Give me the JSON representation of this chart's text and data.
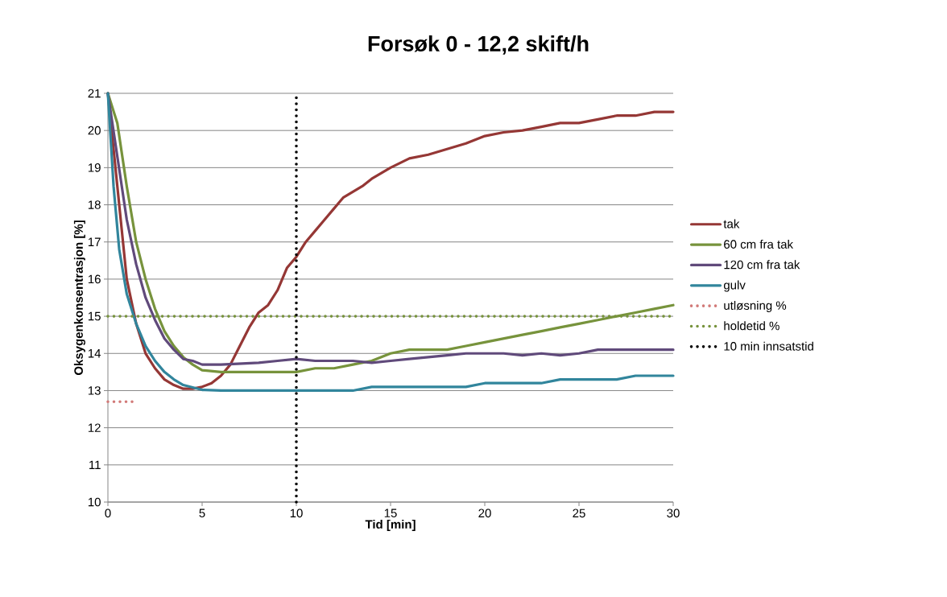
{
  "chart_data": {
    "type": "line",
    "title": "Forsøk  0 - 12,2 skift/h",
    "xlabel": "Tid [min]",
    "ylabel": "Oksygenkonsentrasjon [%]",
    "xlim": [
      0,
      30
    ],
    "ylim": [
      10,
      21
    ],
    "xticks": [
      0,
      5,
      10,
      15,
      20,
      25,
      30
    ],
    "yticks": [
      10,
      11,
      12,
      13,
      14,
      15,
      16,
      17,
      18,
      19,
      20,
      21
    ],
    "grid": "y",
    "legend": "right",
    "series": [
      {
        "name": "tak",
        "color": "#953735",
        "line_style": "solid",
        "x": [
          0,
          0.5,
          1,
          1.5,
          2,
          2.5,
          3,
          3.5,
          4,
          4.5,
          5,
          5.5,
          6,
          6.5,
          7,
          7.5,
          8,
          8.5,
          9,
          9.5,
          10,
          10.5,
          11,
          11.5,
          12,
          12.5,
          13,
          13.5,
          14,
          14.5,
          15,
          16,
          17,
          18,
          19,
          20,
          21,
          22,
          23,
          24,
          25,
          26,
          27,
          28,
          29,
          30
        ],
        "values": [
          21,
          18.5,
          16,
          14.8,
          14,
          13.6,
          13.3,
          13.15,
          13.05,
          13.05,
          13.1,
          13.2,
          13.4,
          13.7,
          14.2,
          14.7,
          15.1,
          15.3,
          15.7,
          16.3,
          16.6,
          17.0,
          17.3,
          17.6,
          17.9,
          18.2,
          18.35,
          18.5,
          18.7,
          18.85,
          19.0,
          19.25,
          19.35,
          19.5,
          19.65,
          19.85,
          19.95,
          20.0,
          20.1,
          20.2,
          20.2,
          20.3,
          20.4,
          20.4,
          20.5,
          20.5
        ]
      },
      {
        "name": "60 cm fra tak",
        "color": "#77933c",
        "line_style": "solid",
        "x": [
          0,
          0.5,
          1,
          1.5,
          2,
          2.5,
          3,
          3.5,
          4,
          4.5,
          5,
          6,
          8,
          10,
          11,
          12,
          13,
          14,
          15,
          16,
          18,
          19,
          20,
          21,
          22,
          23,
          24,
          25,
          26,
          27,
          28,
          29,
          30
        ],
        "values": [
          21,
          20.2,
          18.5,
          17.0,
          16.0,
          15.2,
          14.6,
          14.2,
          13.9,
          13.7,
          13.55,
          13.5,
          13.5,
          13.5,
          13.6,
          13.6,
          13.7,
          13.8,
          14.0,
          14.1,
          14.1,
          14.2,
          14.3,
          14.4,
          14.5,
          14.6,
          14.7,
          14.8,
          14.9,
          15.0,
          15.1,
          15.2,
          15.3
        ]
      },
      {
        "name": "120 cm fra tak",
        "color": "#604a7b",
        "line_style": "solid",
        "x": [
          0,
          0.5,
          1,
          1.5,
          2,
          2.5,
          3,
          3.5,
          4,
          4.5,
          5,
          6,
          8,
          9,
          10,
          11,
          13,
          14,
          15,
          16,
          17,
          18,
          19,
          21,
          22,
          23,
          24,
          25,
          26,
          30
        ],
        "values": [
          21,
          19.3,
          17.6,
          16.4,
          15.5,
          14.9,
          14.4,
          14.1,
          13.85,
          13.8,
          13.7,
          13.7,
          13.75,
          13.8,
          13.85,
          13.8,
          13.8,
          13.75,
          13.8,
          13.85,
          13.9,
          13.95,
          14.0,
          14.0,
          13.95,
          14.0,
          13.95,
          14.0,
          14.1,
          14.1
        ]
      },
      {
        "name": "gulv",
        "color": "#31859c",
        "line_style": "solid",
        "x": [
          0,
          0.3,
          0.6,
          1,
          1.5,
          2,
          2.5,
          3,
          3.5,
          4,
          5,
          6,
          13,
          14,
          19,
          20,
          23,
          24,
          27,
          28,
          30
        ],
        "values": [
          21,
          18.5,
          16.8,
          15.6,
          14.8,
          14.2,
          13.8,
          13.5,
          13.3,
          13.15,
          13.02,
          13.0,
          13.0,
          13.1,
          13.1,
          13.2,
          13.2,
          13.3,
          13.3,
          13.4,
          13.4
        ]
      },
      {
        "name": "utløsning %",
        "color": "#d27a78",
        "line_style": "dotted",
        "x": [
          0,
          1.4
        ],
        "values": [
          12.7,
          12.7
        ]
      },
      {
        "name": "holdetid %",
        "color": "#77933c",
        "line_style": "dotted",
        "x": [
          0,
          30
        ],
        "values": [
          15,
          15
        ]
      },
      {
        "name": "10 min innsatstid",
        "color": "#000000",
        "line_style": "dotted",
        "x": [
          10,
          10
        ],
        "values": [
          10,
          21
        ]
      }
    ]
  }
}
